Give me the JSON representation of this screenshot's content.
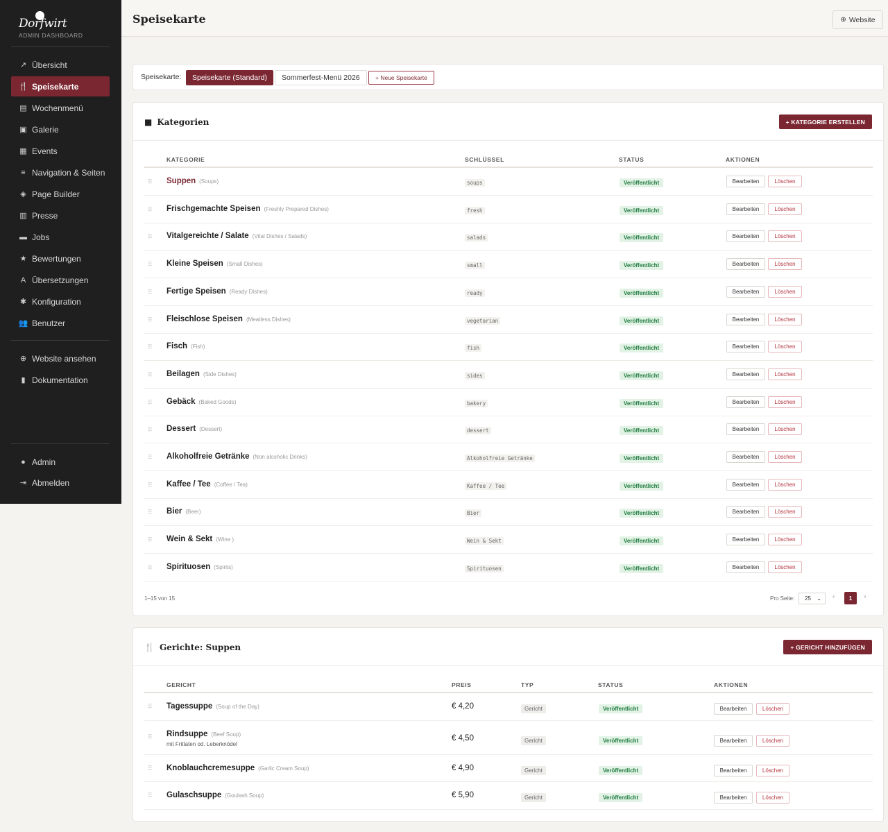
{
  "sidebar": {
    "logo_text": "Dorfwirt",
    "subtitle": "ADMIN DASHBOARD",
    "items": [
      {
        "label": "Übersicht",
        "icon": "chart-line-icon"
      },
      {
        "label": "Speisekarte",
        "icon": "utensils-icon",
        "active": true
      },
      {
        "label": "Wochenmenü",
        "icon": "clipboard-icon"
      },
      {
        "label": "Galerie",
        "icon": "images-icon"
      },
      {
        "label": "Events",
        "icon": "calendar-icon"
      },
      {
        "label": "Navigation & Seiten",
        "icon": "bars-icon"
      },
      {
        "label": "Page Builder",
        "icon": "layers-icon"
      },
      {
        "label": "Presse",
        "icon": "newspaper-icon"
      },
      {
        "label": "Jobs",
        "icon": "briefcase-icon"
      },
      {
        "label": "Bewertungen",
        "icon": "star-icon"
      },
      {
        "label": "Übersetzungen",
        "icon": "language-icon"
      },
      {
        "label": "Konfiguration",
        "icon": "gear-icon"
      },
      {
        "label": "Benutzer",
        "icon": "users-icon"
      }
    ],
    "secondary": [
      {
        "label": "Website ansehen",
        "icon": "globe-icon"
      },
      {
        "label": "Dokumentation",
        "icon": "book-icon"
      }
    ],
    "footer": [
      {
        "label": "Admin",
        "icon": "user-icon"
      },
      {
        "label": "Abmelden",
        "icon": "logout-icon"
      }
    ]
  },
  "header": {
    "title": "Speisekarte",
    "website_label": "Website"
  },
  "menu_selector": {
    "label": "Speisekarte:",
    "menus": [
      "Speisekarte (Standard)",
      "Sommerfest-Menü 2026"
    ],
    "new_label": "+ Neue Speisekarte"
  },
  "categories": {
    "title": "Kategorien",
    "create_label": "+ KATEGORIE ERSTELLEN",
    "columns": [
      "KATEGORIE",
      "SCHLÜSSEL",
      "STATUS",
      "AKTIONEN"
    ],
    "edit_label": "Bearbeiten",
    "delete_label": "Löschen",
    "rows": [
      {
        "name": "Suppen",
        "en": "(Soups)",
        "key": "soups",
        "status": "Veröffentlicht"
      },
      {
        "name": "Frischgemachte Speisen",
        "en": "(Freshly Prepared Dishes)",
        "key": "fresh",
        "status": "Veröffentlicht"
      },
      {
        "name": "Vitalgereichte / Salate",
        "en": "(Vital Dishes / Salads)",
        "key": "salads",
        "status": "Veröffentlicht"
      },
      {
        "name": "Kleine Speisen",
        "en": "(Small Dishes)",
        "key": "small",
        "status": "Veröffentlicht"
      },
      {
        "name": "Fertige Speisen",
        "en": "(Ready Dishes)",
        "key": "ready",
        "status": "Veröffentlicht"
      },
      {
        "name": "Fleischlose Speisen",
        "en": "(Meatless Dishes)",
        "key": "vegetarian",
        "status": "Veröffentlicht"
      },
      {
        "name": "Fisch",
        "en": "(Fish)",
        "key": "fish",
        "status": "Veröffentlicht"
      },
      {
        "name": "Beilagen",
        "en": "(Side Dishes)",
        "key": "sides",
        "status": "Veröffentlicht"
      },
      {
        "name": "Gebäck",
        "en": "(Baked Goods)",
        "key": "bakery",
        "status": "Veröffentlicht"
      },
      {
        "name": "Dessert",
        "en": "(Dessert)",
        "key": "dessert",
        "status": "Veröffentlicht"
      },
      {
        "name": "Alkoholfreie Getränke",
        "en": "(Non alcoholic Drinks)",
        "key": "Alkoholfreie Getränke",
        "status": "Veröffentlicht"
      },
      {
        "name": "Kaffee / Tee",
        "en": "(Coffee / Tea)",
        "key": "Kaffee / Tee",
        "status": "Veröffentlicht"
      },
      {
        "name": "Bier",
        "en": "(Beer)",
        "key": "Bier",
        "status": "Veröffentlicht"
      },
      {
        "name": "Wein & Sekt",
        "en": "(Wine )",
        "key": "Wein & Sekt",
        "status": "Veröffentlicht"
      },
      {
        "name": "Spirituosen",
        "en": "(Spirits)",
        "key": "Spirituosen",
        "status": "Veröffentlicht"
      }
    ],
    "count_text": "1–15 von 15",
    "per_page_label": "Pro Seite:",
    "per_page_value": "25",
    "current_page": "1"
  },
  "dishes": {
    "title": "Gerichte: Suppen",
    "add_label": "+ GERICHT HINZUFÜGEN",
    "columns": [
      "GERICHT",
      "PREIS",
      "TYP",
      "STATUS",
      "AKTIONEN"
    ],
    "edit_label": "Bearbeiten",
    "delete_label": "Löschen",
    "rows": [
      {
        "name": "Tagessuppe",
        "en": "(Soup of the Day)",
        "sub": "",
        "price": "€ 4,20",
        "type": "Gericht",
        "status": "Veröffentlicht"
      },
      {
        "name": "Rindsuppe",
        "en": "(Beef Soup)",
        "sub": "mit Frittaten od. Leberknödel",
        "price": "€ 4,50",
        "type": "Gericht",
        "status": "Veröffentlicht"
      },
      {
        "name": "Knoblauchcremesuppe",
        "en": "(Garlic Cream Soup)",
        "sub": "",
        "price": "€ 4,90",
        "type": "Gericht",
        "status": "Veröffentlicht"
      },
      {
        "name": "Gulaschsuppe",
        "en": "(Goulash Soup)",
        "sub": "",
        "price": "€ 5,90",
        "type": "Gericht",
        "status": "Veröffentlicht"
      }
    ]
  }
}
